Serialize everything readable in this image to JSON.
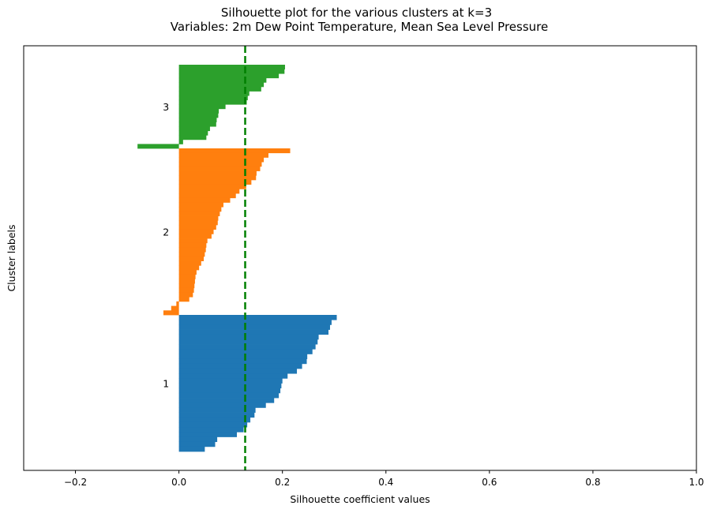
{
  "chart_data": {
    "type": "bar",
    "orientation": "horizontal",
    "title": "Silhouette plot for the various clusters at k=3",
    "subtitle": "Variables: 2m Dew Point Temperature, Mean Sea Level Pressure",
    "xlabel": "Silhouette coefficient values",
    "ylabel": "Cluster labels",
    "xlim": [
      -0.3,
      1.0
    ],
    "xticks": [
      -0.2,
      0.0,
      0.2,
      0.4,
      0.6,
      0.8,
      1.0
    ],
    "xtick_labels": [
      "−0.2",
      "0.0",
      "0.2",
      "0.4",
      "0.6",
      "0.8",
      "1.0"
    ],
    "yticks_visible": false,
    "grid": false,
    "average_line": {
      "value": 0.128,
      "color": "#008000",
      "style": "dashed"
    },
    "clusters": [
      {
        "label": "1",
        "color": "#1f77b4",
        "values": [
          0.305,
          0.295,
          0.292,
          0.289,
          0.27,
          0.268,
          0.264,
          0.258,
          0.248,
          0.247,
          0.238,
          0.228,
          0.21,
          0.2,
          0.198,
          0.196,
          0.193,
          0.184,
          0.168,
          0.148,
          0.146,
          0.138,
          0.132,
          0.125,
          0.112,
          0.074,
          0.07,
          0.05
        ]
      },
      {
        "label": "2",
        "color": "#ff7f0e",
        "values": [
          0.215,
          0.173,
          0.164,
          0.16,
          0.157,
          0.15,
          0.149,
          0.14,
          0.13,
          0.117,
          0.11,
          0.099,
          0.086,
          0.082,
          0.079,
          0.076,
          0.075,
          0.072,
          0.067,
          0.063,
          0.055,
          0.053,
          0.052,
          0.05,
          0.048,
          0.043,
          0.039,
          0.034,
          0.032,
          0.031,
          0.03,
          0.029,
          0.027,
          0.02,
          -0.005,
          -0.015,
          -0.03
        ]
      },
      {
        "label": "3",
        "color": "#2ca02c",
        "values": [
          0.205,
          0.204,
          0.193,
          0.169,
          0.164,
          0.159,
          0.136,
          0.133,
          0.131,
          0.09,
          0.077,
          0.076,
          0.073,
          0.072,
          0.06,
          0.056,
          0.053,
          0.008,
          -0.08
        ]
      }
    ]
  }
}
